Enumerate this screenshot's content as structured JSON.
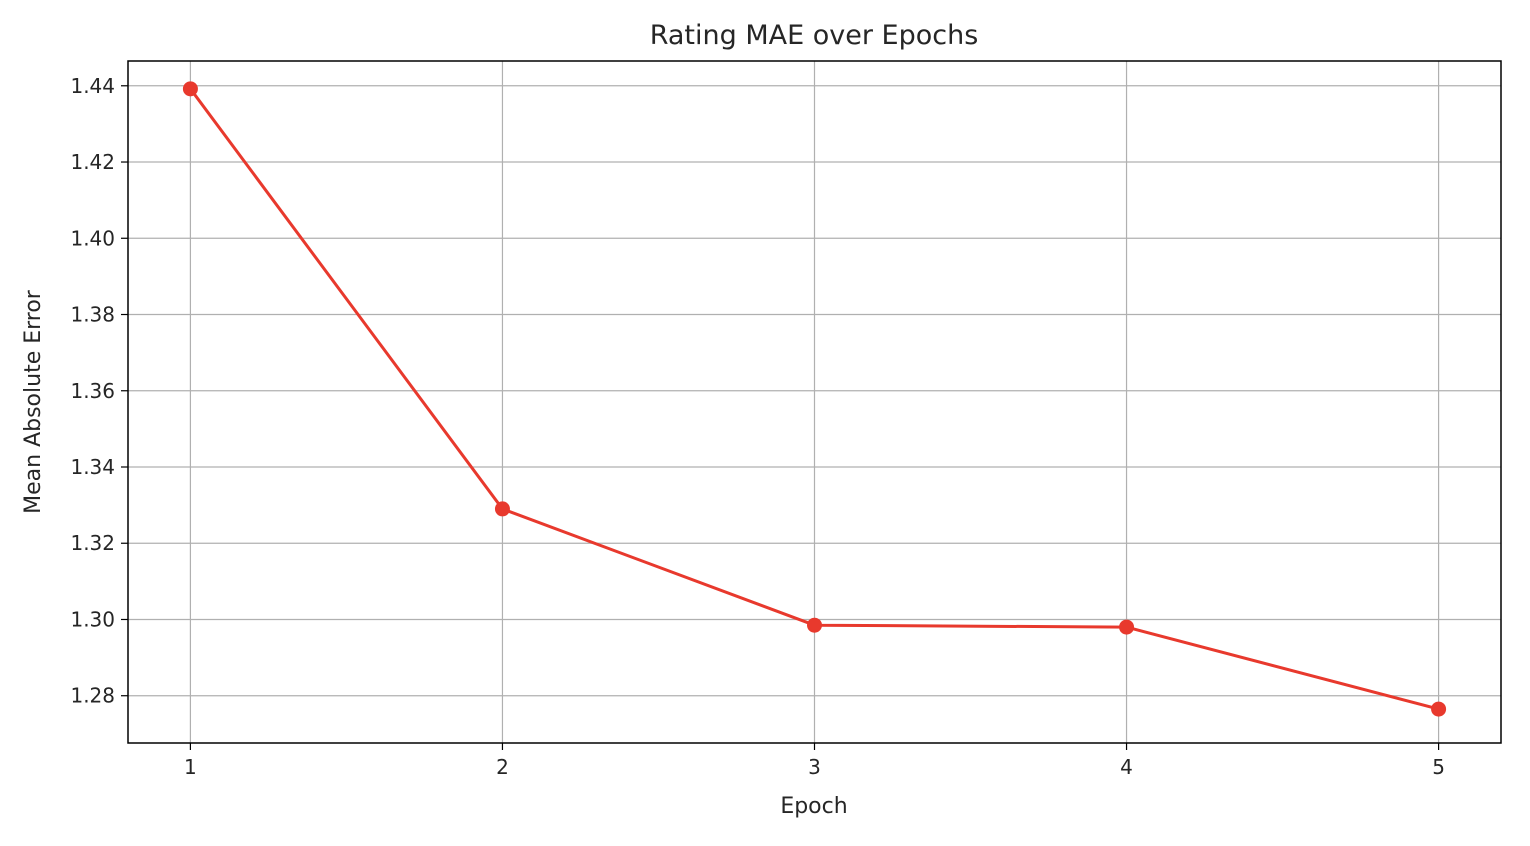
{
  "chart_data": {
    "type": "line",
    "title": "Rating MAE over Epochs",
    "xlabel": "Epoch",
    "ylabel": "Mean Absolute Error",
    "x": [
      1,
      2,
      3,
      4,
      5
    ],
    "series": [
      {
        "values": [
          1.4392,
          1.329,
          1.2985,
          1.298,
          1.2765
        ],
        "color": "#e8392d",
        "marker": "circle"
      }
    ],
    "xlim": [
      0.8,
      5.2
    ],
    "ylim": [
      1.2676,
      1.4465
    ],
    "xticks": [
      1,
      2,
      3,
      4,
      5
    ],
    "xtick_labels": [
      "1",
      "2",
      "3",
      "4",
      "5"
    ],
    "yticks": [
      1.28,
      1.3,
      1.32,
      1.34,
      1.36,
      1.38,
      1.4,
      1.42,
      1.44
    ],
    "ytick_labels": [
      "1.28",
      "1.30",
      "1.32",
      "1.34",
      "1.36",
      "1.38",
      "1.40",
      "1.42",
      "1.44"
    ],
    "grid": true,
    "legend": false
  }
}
